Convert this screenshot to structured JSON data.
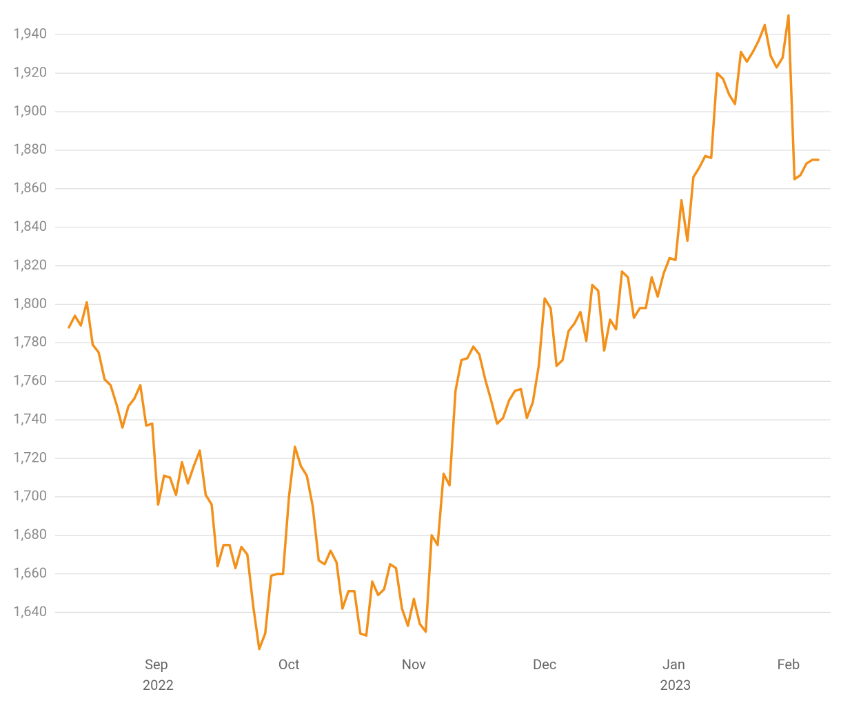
{
  "chart_data": {
    "type": "line",
    "categories": [
      null,
      null,
      null,
      null,
      null,
      null,
      null,
      null,
      null,
      null,
      null,
      null,
      null,
      null,
      null,
      "Sep 2022",
      null,
      null,
      null,
      null,
      null,
      null,
      null,
      null,
      null,
      null,
      null,
      null,
      null,
      null,
      null,
      null,
      null,
      null,
      null,
      null,
      null,
      "Oct",
      null,
      null,
      null,
      null,
      null,
      null,
      null,
      null,
      null,
      null,
      null,
      null,
      null,
      null,
      null,
      null,
      null,
      null,
      null,
      null,
      "Nov",
      null,
      null,
      null,
      null,
      null,
      null,
      null,
      null,
      null,
      null,
      null,
      null,
      null,
      null,
      null,
      null,
      null,
      null,
      null,
      null,
      null,
      "Dec",
      null,
      null,
      null,
      null,
      null,
      null,
      null,
      null,
      null,
      null,
      null,
      null,
      null,
      null,
      null,
      null,
      null,
      null,
      null,
      null,
      null,
      "Jan 2023",
      null,
      null,
      null,
      null,
      null,
      null,
      null,
      null,
      null,
      null,
      null,
      null,
      null,
      null,
      null,
      null,
      null,
      null,
      "Feb",
      null,
      null,
      null,
      null,
      null
    ],
    "series": [
      {
        "color": "#f39019",
        "values": [
          1788,
          1794,
          1789,
          1801,
          1779,
          1775,
          1761,
          1758,
          1748,
          1736,
          1747,
          1751,
          1758,
          1737,
          1738,
          1696,
          1711,
          1710,
          1701,
          1718,
          1707,
          1716,
          1724,
          1701,
          1696,
          1664,
          1675,
          1675,
          1663,
          1674,
          1670,
          1643,
          1621,
          1629,
          1659,
          1660,
          1660,
          1700,
          1726,
          1716,
          1711,
          1695,
          1667,
          1665,
          1672,
          1666,
          1642,
          1651,
          1651,
          1629,
          1628,
          1656,
          1649,
          1652,
          1665,
          1663,
          1642,
          1633,
          1647,
          1634,
          1630,
          1680,
          1675,
          1712,
          1706,
          1755,
          1771,
          1772,
          1778,
          1774,
          1761,
          1750,
          1738,
          1741,
          1750,
          1755,
          1756,
          1741,
          1749,
          1768,
          1803,
          1798,
          1768,
          1771,
          1786,
          1790,
          1796,
          1781,
          1810,
          1807,
          1776,
          1792,
          1787,
          1817,
          1814,
          1793,
          1798,
          1798,
          1814,
          1804,
          1816,
          1824,
          1823,
          1854,
          1833,
          1866,
          1871,
          1877,
          1876,
          1920,
          1917,
          1909,
          1904,
          1931,
          1926,
          1931,
          1937,
          1945,
          1929,
          1923,
          1928,
          1950,
          1865,
          1867,
          1873,
          1875,
          1875
        ]
      }
    ],
    "ylim": [
      1618,
      1958
    ],
    "yticks": [
      {
        "value": 1640,
        "label": "1,640"
      },
      {
        "value": 1660,
        "label": "1,660"
      },
      {
        "value": 1680,
        "label": "1,680"
      },
      {
        "value": 1700,
        "label": "1,700"
      },
      {
        "value": 1720,
        "label": "1,720"
      },
      {
        "value": 1740,
        "label": "1,740"
      },
      {
        "value": 1760,
        "label": "1,760"
      },
      {
        "value": 1780,
        "label": "1,780"
      },
      {
        "value": 1800,
        "label": "1,800"
      },
      {
        "value": 1820,
        "label": "1,820"
      },
      {
        "value": 1840,
        "label": "1,840"
      },
      {
        "value": 1860,
        "label": "1,860"
      },
      {
        "value": 1880,
        "label": "1,880"
      },
      {
        "value": 1900,
        "label": "1,900"
      },
      {
        "value": 1920,
        "label": "1,920"
      },
      {
        "value": 1940,
        "label": "1,940"
      }
    ],
    "grid": true
  }
}
